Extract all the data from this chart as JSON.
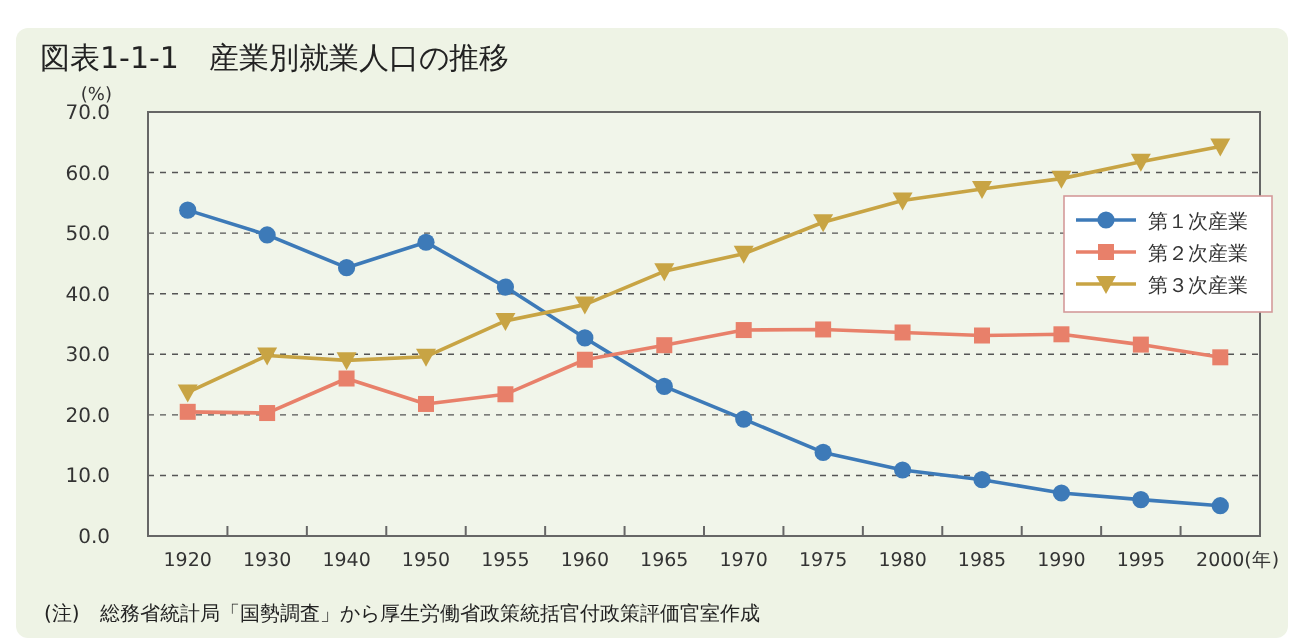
{
  "chart_data": {
    "type": "line",
    "title": "図表1-1-1　産業別就業人口の推移",
    "ylabel": "(%)",
    "xlabel": "(年)",
    "annotations": [
      "(注)　総務省統計局「国勢調査」から厚生労働省政策統括官付政策評価官室作成"
    ],
    "categories": [
      "1920",
      "1930",
      "1940",
      "1950",
      "1955",
      "1960",
      "1965",
      "1970",
      "1975",
      "1980",
      "1985",
      "1990",
      "1995",
      "2000"
    ],
    "ylim": [
      0,
      70
    ],
    "yticks": [
      {
        "value": 0,
        "label": "0.0"
      },
      {
        "value": 10,
        "label": "10.0"
      },
      {
        "value": 20,
        "label": "20.0"
      },
      {
        "value": 30,
        "label": "30.0"
      },
      {
        "value": 40,
        "label": "40.0"
      },
      {
        "value": 50,
        "label": "50.0"
      },
      {
        "value": 60,
        "label": "60.0"
      },
      {
        "value": 70,
        "label": "70.0"
      }
    ],
    "grid": "y",
    "legend": "right",
    "line_style": "solid",
    "series": [
      {
        "name": "第１次産業",
        "color": "#3d7ab8",
        "marker": "circle",
        "values": [
          53.8,
          49.7,
          44.3,
          48.5,
          41.1,
          32.7,
          24.7,
          19.3,
          13.8,
          10.9,
          9.3,
          7.1,
          6.0,
          5.0
        ]
      },
      {
        "name": "第２次産業",
        "color": "#e8806a",
        "marker": "square",
        "values": [
          20.5,
          20.3,
          26.0,
          21.8,
          23.4,
          29.1,
          31.5,
          34.0,
          34.1,
          33.6,
          33.1,
          33.3,
          31.6,
          29.5
        ]
      },
      {
        "name": "第３次産業",
        "color": "#c8a444",
        "marker": "triangle",
        "values": [
          23.7,
          29.8,
          29.0,
          29.6,
          35.5,
          38.2,
          43.7,
          46.6,
          51.8,
          55.4,
          57.3,
          59.0,
          61.8,
          64.3
        ]
      }
    ]
  }
}
